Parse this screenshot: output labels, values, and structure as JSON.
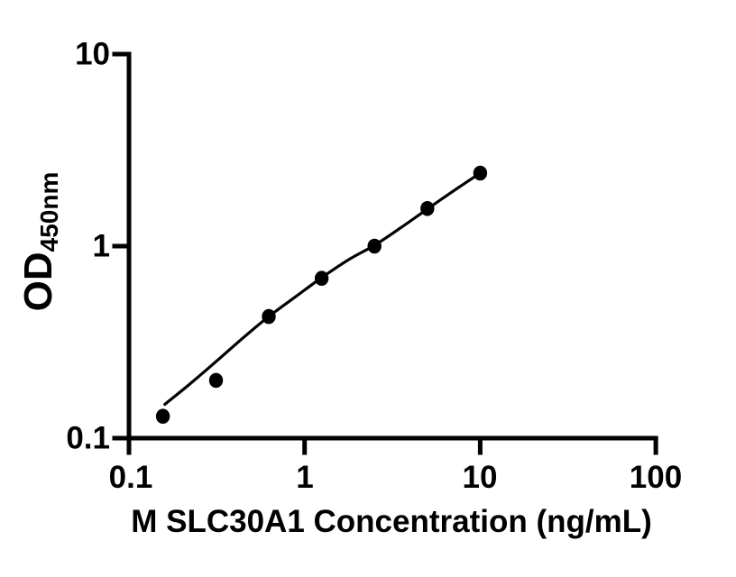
{
  "figure": {
    "background_color": "#ffffff",
    "ink_color": "#000000"
  },
  "chart_data": {
    "type": "scatter",
    "description": "ELISA standard curve, log-log axes, black filled circle markers with fitted curve",
    "grid": false,
    "legend": null,
    "x_axis": {
      "label": "M SLC30A1 Concentration (ng/mL)",
      "scale": "log10",
      "range": [
        0.1,
        100
      ],
      "ticks": [
        {
          "value": 0.1,
          "label": "0.1"
        },
        {
          "value": 1,
          "label": "1"
        },
        {
          "value": 10,
          "label": "10"
        },
        {
          "value": 100,
          "label": "100"
        }
      ]
    },
    "y_axis": {
      "label_main": "OD",
      "label_sub": "450nm",
      "scale": "log10",
      "range": [
        0.1,
        10
      ],
      "ticks": [
        {
          "value": 10,
          "label": "10"
        },
        {
          "value": 1,
          "label": "1"
        },
        {
          "value": 0.1,
          "label": "0.1"
        }
      ]
    },
    "series": [
      {
        "name": "standard-points",
        "marker": "filled-circle",
        "color": "#000000",
        "points": [
          {
            "x": 0.156,
            "od": 0.13
          },
          {
            "x": 0.313,
            "od": 0.2
          },
          {
            "x": 0.625,
            "od": 0.43
          },
          {
            "x": 1.25,
            "od": 0.68
          },
          {
            "x": 2.5,
            "od": 1.0
          },
          {
            "x": 5,
            "od": 1.57
          },
          {
            "x": 10,
            "od": 2.4
          }
        ]
      }
    ],
    "fit_curve": {
      "name": "fitted-standard-curve",
      "color": "#000000",
      "points": [
        [
          0.16,
          0.15
        ],
        [
          0.22,
          0.19
        ],
        [
          0.3125,
          0.25
        ],
        [
          0.45,
          0.335
        ],
        [
          0.625,
          0.43
        ],
        [
          0.9,
          0.55
        ],
        [
          1.25,
          0.685
        ],
        [
          1.8,
          0.855
        ],
        [
          2.5,
          1.01
        ],
        [
          3.5,
          1.24
        ],
        [
          5,
          1.56
        ],
        [
          7,
          1.93
        ],
        [
          10,
          2.4
        ]
      ]
    }
  }
}
